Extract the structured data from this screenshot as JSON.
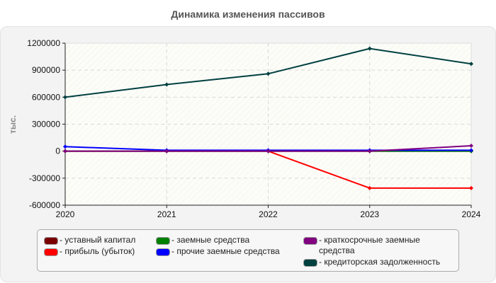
{
  "header": {
    "title": "Динамика изменения пассивов"
  },
  "chart_data": {
    "type": "line",
    "title": "Динамика изменения пассивов",
    "xlabel": "",
    "ylabel": "тыс.",
    "x": [
      "2020",
      "2021",
      "2022",
      "2023",
      "2024"
    ],
    "ylim": [
      -600000,
      1200000
    ],
    "yticks": [
      "1200000",
      "900000",
      "600000",
      "300000",
      "0",
      "-300000",
      "-600000"
    ],
    "grid": true,
    "legend_position": "bottom",
    "series": [
      {
        "name": "уставный капитал",
        "color": "#7a0000",
        "values": [
          0,
          0,
          0,
          0,
          0
        ]
      },
      {
        "name": "прибыль (убыток)",
        "color": "#ff0000",
        "values": [
          0,
          0,
          0,
          -410000,
          -410000
        ]
      },
      {
        "name": "заемные средства",
        "color": "#008000",
        "values": [
          0,
          0,
          0,
          0,
          0
        ]
      },
      {
        "name": "прочие заемные средства",
        "color": "#0000ff",
        "values": [
          50000,
          10000,
          10000,
          10000,
          10000
        ]
      },
      {
        "name": "краткосрочные заемные средства",
        "color": "#800080",
        "values": [
          0,
          0,
          0,
          0,
          60000
        ]
      },
      {
        "name": "кредиторская задолженность",
        "color": "#004040",
        "values": [
          600000,
          740000,
          860000,
          1140000,
          970000
        ]
      }
    ]
  },
  "legend": {
    "col1": [
      {
        "label": "- уставный капитал",
        "color": "#7a0000"
      },
      {
        "label": "- прибыль (убыток)",
        "color": "#ff0000"
      }
    ],
    "col2": [
      {
        "label": "- заемные средства",
        "color": "#008000"
      },
      {
        "label": "- прочие заемные средства",
        "color": "#0000ff"
      }
    ],
    "col3": [
      {
        "label": "- краткосрочные заемные средства",
        "color": "#800080"
      },
      {
        "label": "- кредиторская задолженность",
        "color": "#004040"
      }
    ]
  }
}
